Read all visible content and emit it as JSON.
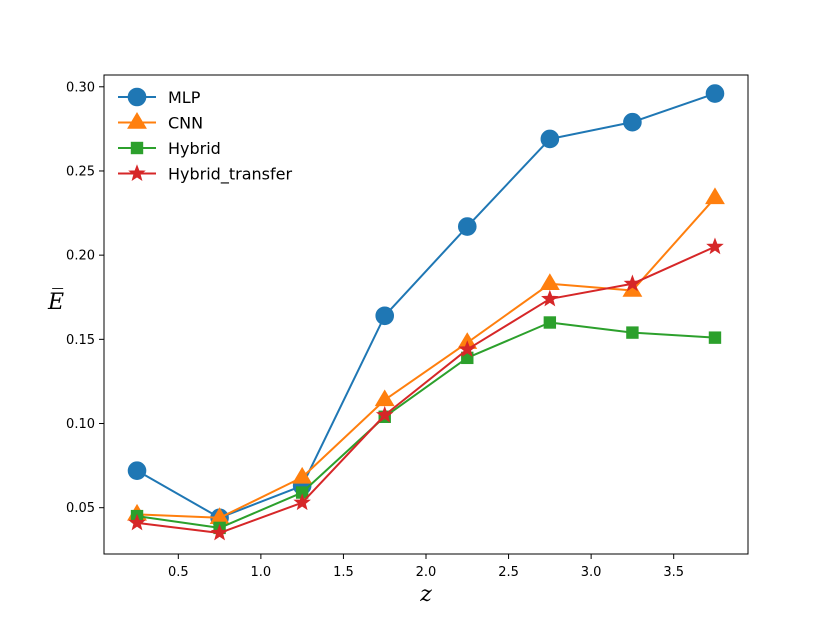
{
  "chart_data": {
    "type": "line",
    "title": "",
    "xlabel": "z",
    "ylabel": "E̅",
    "xlim": [
      0.05,
      3.95
    ],
    "ylim": [
      0.0225,
      0.307
    ],
    "x_ticks": [
      0.5,
      1.0,
      1.5,
      2.0,
      2.5,
      3.0,
      3.5
    ],
    "x_tick_labels": [
      "0.5",
      "1.0",
      "1.5",
      "2.0",
      "2.5",
      "3.0",
      "3.5"
    ],
    "y_ticks": [
      0.05,
      0.1,
      0.15,
      0.2,
      0.25,
      0.3
    ],
    "y_tick_labels": [
      "0.05",
      "0.10",
      "0.15",
      "0.20",
      "0.25",
      "0.30"
    ],
    "grid": false,
    "legend_position": "top-left",
    "x": [
      0.25,
      0.75,
      1.25,
      1.75,
      2.25,
      2.75,
      3.25,
      3.75
    ],
    "series": [
      {
        "name": "MLP",
        "color": "#1f77b4",
        "marker": "circle",
        "values": [
          0.072,
          0.044,
          0.063,
          0.164,
          0.217,
          0.269,
          0.279,
          0.296
        ]
      },
      {
        "name": "CNN",
        "color": "#ff7f0e",
        "marker": "triangle",
        "values": [
          0.046,
          0.044,
          0.068,
          0.114,
          0.148,
          0.183,
          0.179,
          0.234
        ]
      },
      {
        "name": "Hybrid",
        "color": "#2ca02c",
        "marker": "square",
        "values": [
          0.045,
          0.038,
          0.059,
          0.104,
          0.139,
          0.16,
          0.154,
          0.151
        ]
      },
      {
        "name": "Hybrid_transfer",
        "color": "#d62728",
        "marker": "star",
        "values": [
          0.041,
          0.035,
          0.053,
          0.105,
          0.144,
          0.174,
          0.183,
          0.205
        ]
      }
    ]
  }
}
